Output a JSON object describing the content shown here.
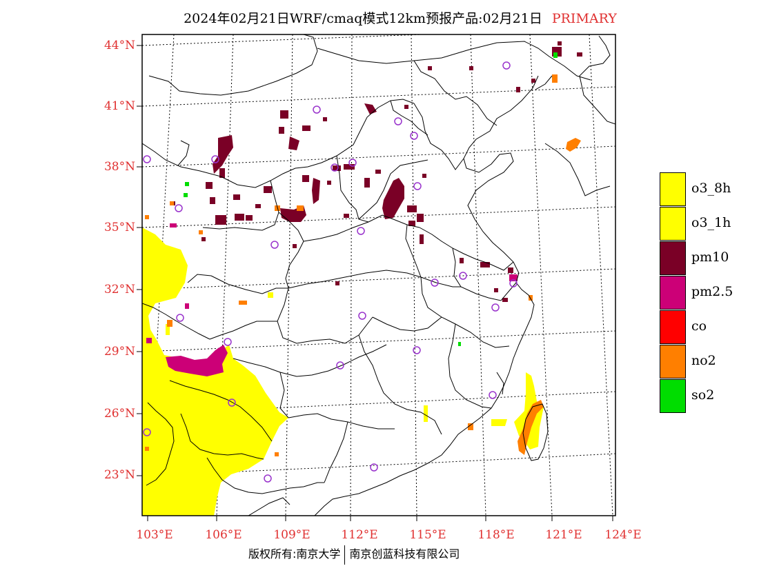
{
  "title": {
    "main": "2024年02月21日WRF/cmaq模式12km预报产品:02月21日",
    "tag": "PRIMARY"
  },
  "axes": {
    "lat_labels": [
      "44°N",
      "41°N",
      "38°N",
      "35°N",
      "32°N",
      "29°N",
      "26°N",
      "23°N"
    ],
    "lon_labels": [
      "103°E",
      "106°E",
      "109°E",
      "112°E",
      "115°E",
      "118°E",
      "121°E",
      "124°E"
    ]
  },
  "legend": [
    {
      "label": "o3_8h",
      "color": "#ffff00"
    },
    {
      "label": "o3_1h",
      "color": "#ffff00"
    },
    {
      "label": "pm10",
      "color": "#7a0026"
    },
    {
      "label": "pm2.5",
      "color": "#cc0077"
    },
    {
      "label": "co",
      "color": "#ff0000"
    },
    {
      "label": "no2",
      "color": "#ff7f00"
    },
    {
      "label": "so2",
      "color": "#00dd00"
    }
  ],
  "footer": {
    "left": "版权所有:南京大学",
    "right": "南京创蓝科技有限公司"
  }
}
